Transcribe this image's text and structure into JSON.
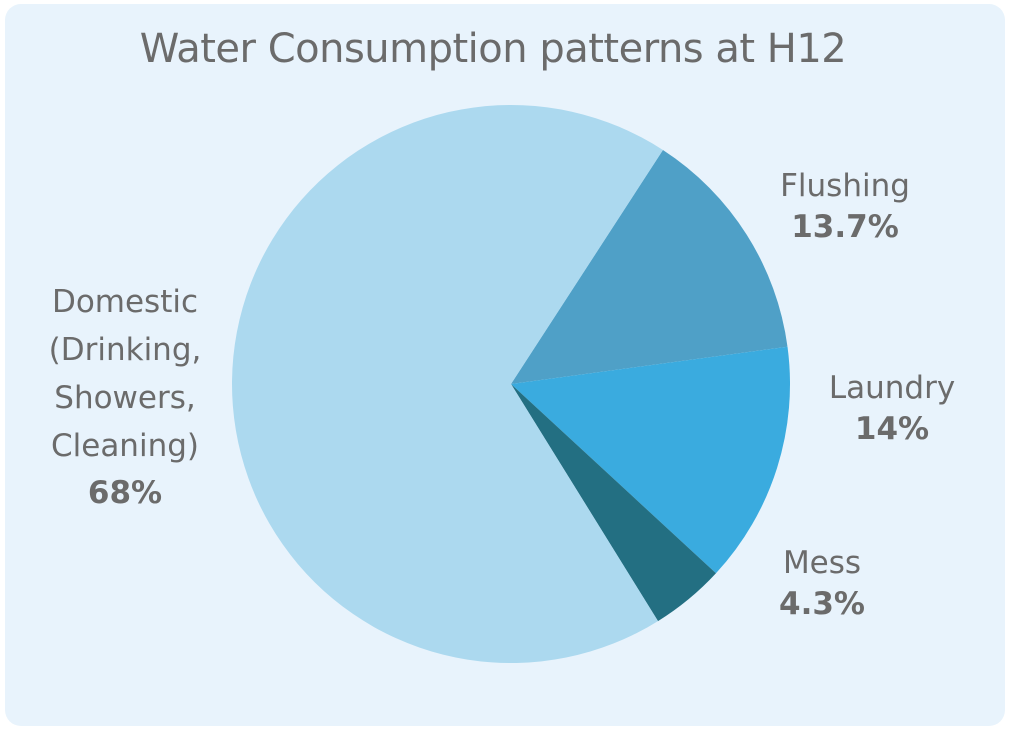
{
  "chart_data": {
    "type": "pie",
    "title": "Water Consumption patterns at H12",
    "slices": [
      {
        "label": "Flushing",
        "value": 13.7,
        "value_label": "13.7%",
        "color": "#4fa0c7"
      },
      {
        "label": "Laundry",
        "value": 14,
        "value_label": "14%",
        "color": "#3aabdf"
      },
      {
        "label": "Mess",
        "value": 4.3,
        "value_label": "4.3%",
        "color": "#236f82"
      },
      {
        "label": "Domestic (Drinking, Showers, Cleaning)",
        "value": 68,
        "value_label": "68%",
        "color": "#acd9ef"
      }
    ],
    "legend": "none",
    "labels_placement": "outside"
  }
}
